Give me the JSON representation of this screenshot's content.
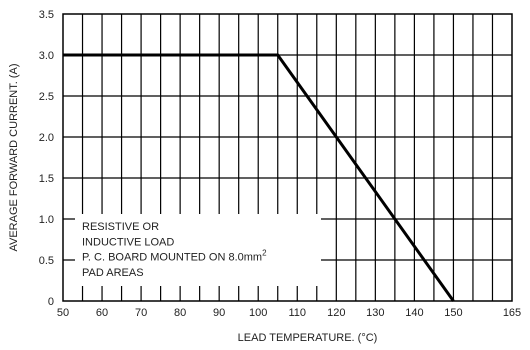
{
  "chart_data": {
    "type": "line",
    "title": "",
    "xlabel": "LEAD TEMPERATURE. (°C)",
    "ylabel": "AVERAGE FORWARD CURRENT. (A)",
    "xlim": [
      50,
      165
    ],
    "ylim": [
      0,
      3.5
    ],
    "x_ticks": [
      50,
      60,
      70,
      80,
      90,
      100,
      110,
      120,
      130,
      140,
      150,
      165
    ],
    "y_ticks": [
      0,
      0.5,
      1.0,
      1.5,
      2.0,
      2.5,
      3.0,
      3.5
    ],
    "x_tick_labels": [
      "50",
      "60",
      "70",
      "80",
      "90",
      "100",
      "110",
      "120",
      "130",
      "140",
      "150",
      "165"
    ],
    "y_tick_labels": [
      "0",
      "0.5",
      "1.0",
      "1.5",
      "2.0",
      "2.5",
      "3.0",
      "3.5"
    ],
    "grid": true,
    "series": [
      {
        "x": [
          50,
          105,
          150
        ],
        "y": [
          3.0,
          3.0,
          0
        ]
      }
    ],
    "annotation": {
      "lines": [
        "RESISTIVE OR",
        "INDUCTIVE LOAD",
        "P. C. BOARD MOUNTED ON 8.0mm",
        "PAD AREAS"
      ],
      "superscript": "2",
      "placement": "bottom-left"
    }
  }
}
